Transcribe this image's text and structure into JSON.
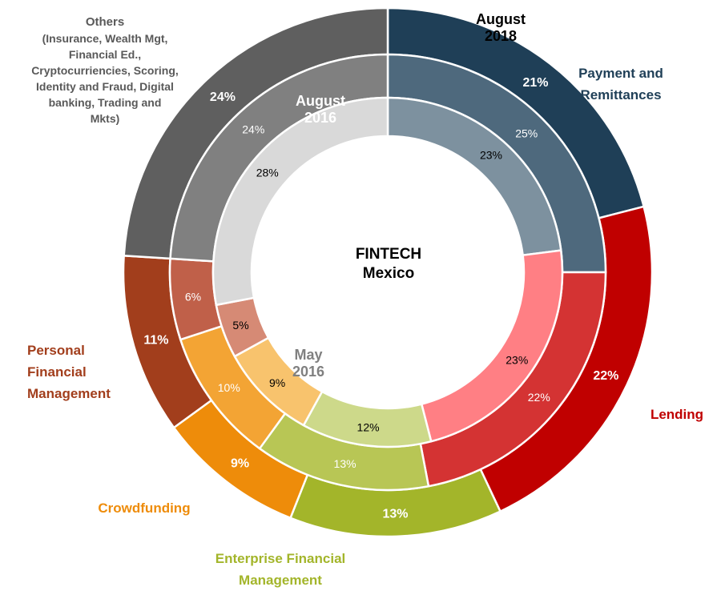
{
  "chart_data": {
    "type": "donut",
    "center_title": [
      "FINTECH",
      "Mexico"
    ],
    "categories": [
      "Payment and Remittances",
      "Lending",
      "Enterprise Financial Management",
      "Crowdfunding",
      "Personal Financial Management",
      "Others"
    ],
    "category_labels": {
      "payment": [
        "Payment and",
        "Remittances"
      ],
      "lending": [
        "Lending"
      ],
      "enterprise": [
        "Enterprise Financial",
        "Management"
      ],
      "crowdfunding": [
        "Crowdfunding"
      ],
      "personal": [
        "Personal",
        "Financial",
        "Management"
      ],
      "others": [
        "Others"
      ],
      "others_detail": [
        "(Insurance, Wealth Mgt,",
        "Financial Ed.,",
        "Cryptocurriencies, Scoring,",
        "Identity and Fraud, Digital",
        "banking, Trading and",
        "Mkts)"
      ]
    },
    "series": [
      {
        "name": "May 2016",
        "title_lines": [
          "May",
          "2016"
        ],
        "ring": "inner",
        "values": [
          23,
          23,
          12,
          9,
          5,
          28
        ],
        "labels": [
          "23%",
          "23%",
          "12%",
          "9%",
          "5%",
          "28%"
        ]
      },
      {
        "name": "August 2016",
        "title_lines": [
          "August",
          "2016"
        ],
        "ring": "middle",
        "values": [
          25,
          22,
          13,
          10,
          6,
          24
        ],
        "labels": [
          "25%",
          "22%",
          "13%",
          "10%",
          "6%",
          "24%"
        ]
      },
      {
        "name": "August 2018",
        "title_lines": [
          "August",
          "2018"
        ],
        "ring": "outer",
        "values": [
          21,
          22,
          13,
          9,
          11,
          24
        ],
        "labels": [
          "21%",
          "22%",
          "13%",
          "9%",
          "11%",
          "24%"
        ]
      }
    ],
    "colors": {
      "outer": [
        "#1f3f57",
        "#c00000",
        "#a3b52a",
        "#ee8c0a",
        "#a23e1c",
        "#5f5f5f"
      ],
      "middle": [
        "#4e697d",
        "#d43333",
        "#b8c655",
        "#f3a434",
        "#c06049",
        "#808080"
      ],
      "inner": [
        "#7d919f",
        "#ff7f84",
        "#cdd98a",
        "#f8c36d",
        "#d68a75",
        "#d9d9d9"
      ],
      "category_text": [
        "#1f3f57",
        "#c00000",
        "#a3b52a",
        "#ee8c0a",
        "#a23e1c",
        "#595959"
      ]
    }
  }
}
